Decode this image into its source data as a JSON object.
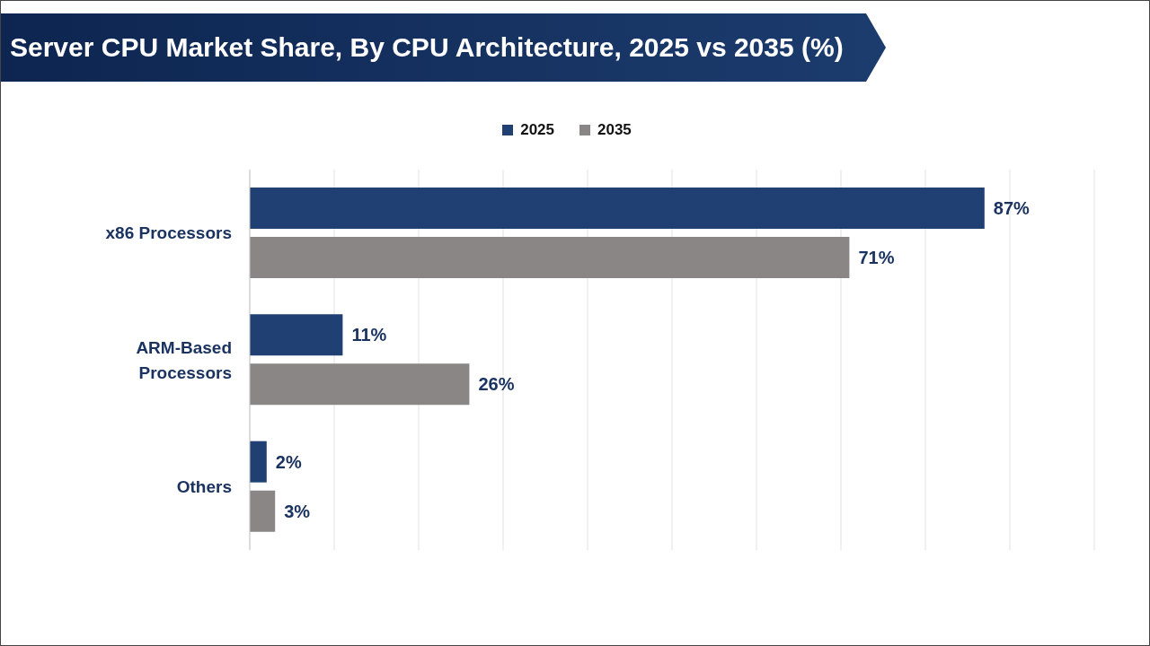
{
  "chart_data": {
    "type": "bar",
    "orientation": "horizontal",
    "title": "Server CPU Market Share, By CPU Architecture, 2025 vs 2035 (%)",
    "categories": [
      "x86 Processors",
      "ARM-Based Processors",
      "Others"
    ],
    "series": [
      {
        "name": "2025",
        "color": "#203f73",
        "values": [
          87,
          11,
          2
        ],
        "value_labels": [
          "87%",
          "11%",
          "2%"
        ]
      },
      {
        "name": "2035",
        "color": "#8a8686",
        "values": [
          71,
          26,
          3
        ],
        "value_labels": [
          "71%",
          "26%",
          "3%"
        ]
      }
    ],
    "xlim": [
      0,
      100
    ],
    "xticks": [
      {
        "value": 0,
        "label": null
      },
      {
        "value": 10,
        "label": null
      },
      {
        "value": 20,
        "label": null
      },
      {
        "value": 30,
        "label": null
      },
      {
        "value": 40,
        "label": null
      },
      {
        "value": 50,
        "label": null
      },
      {
        "value": 60,
        "label": null
      },
      {
        "value": 70,
        "label": null
      },
      {
        "value": 80,
        "label": null
      },
      {
        "value": 90,
        "label": null
      },
      {
        "value": 100,
        "label": null
      }
    ],
    "grid": "x",
    "legend": "top",
    "tick_labels": "y"
  }
}
